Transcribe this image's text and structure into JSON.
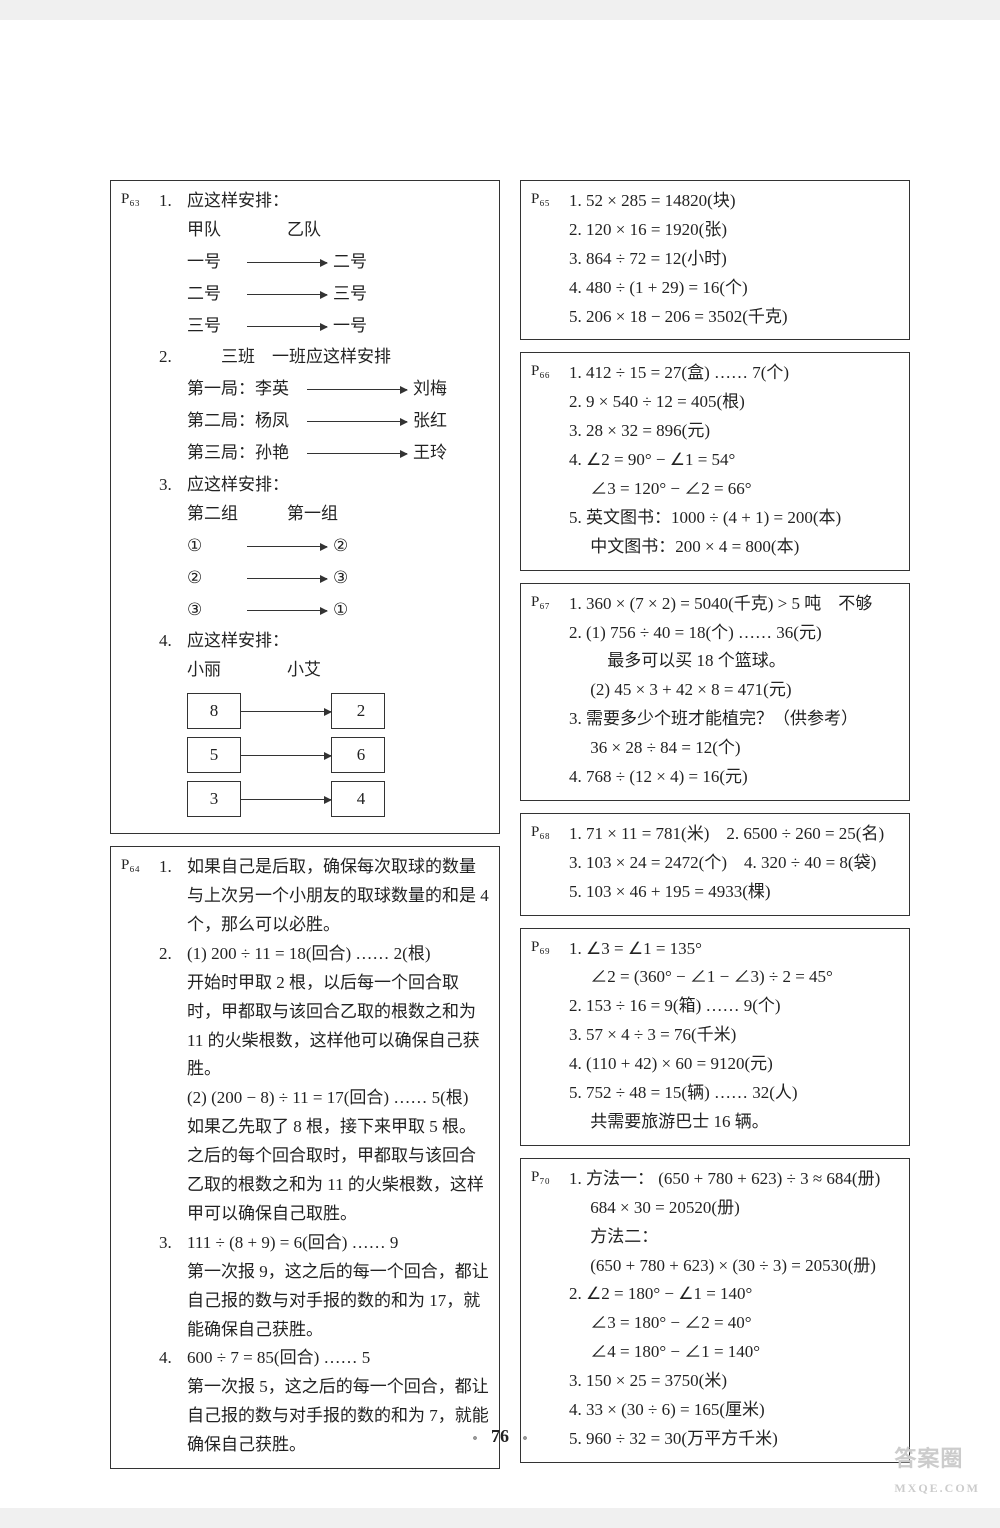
{
  "page_number": "76",
  "watermark": {
    "main": "答案圈",
    "sub": "MXQE.COM"
  },
  "left": {
    "p63": {
      "label": "P₆₃",
      "items": [
        {
          "n": "1.",
          "title": "应这样安排：",
          "header": [
            "甲队",
            "乙队"
          ],
          "arrows": [
            [
              "一号",
              "二号"
            ],
            [
              "二号",
              "三号"
            ],
            [
              "三号",
              "一号"
            ]
          ]
        },
        {
          "n": "2.",
          "title": "三班　一班应这样安排",
          "arrows_wide": [
            [
              "第一局：李英",
              "刘梅"
            ],
            [
              "第二局：杨凤",
              "张红"
            ],
            [
              "第三局：孙艳",
              "王玲"
            ]
          ]
        },
        {
          "n": "3.",
          "title": "应这样安排：",
          "header": [
            "第二组",
            "第一组"
          ],
          "arrows": [
            [
              "①",
              "②"
            ],
            [
              "②",
              "③"
            ],
            [
              "③",
              "①"
            ]
          ]
        },
        {
          "n": "4.",
          "title": "应这样安排：",
          "header": [
            "小丽",
            "小艾"
          ],
          "boxed": [
            [
              "8",
              "2"
            ],
            [
              "5",
              "6"
            ],
            [
              "3",
              "4"
            ]
          ]
        }
      ]
    },
    "p64": {
      "label": "P₆₄",
      "lines": [
        {
          "n": "1.",
          "t": "如果自己是后取，确保每次取球的数量与上次另一个小朋友的取球数量的和是 4 个，那么可以必胜。"
        },
        {
          "n": "2.",
          "t": "(1) 200 ÷ 11 = 18(回合) …… 2(根)"
        },
        {
          "n": "",
          "t": "开始时甲取 2 根，以后每一个回合取时，甲都取与该回合乙取的根数之和为 11 的火柴根数，这样他可以确保自己获胜。"
        },
        {
          "n": "",
          "t": "(2) (200 − 8) ÷ 11 = 17(回合) …… 5(根)"
        },
        {
          "n": "",
          "t": "如果乙先取了 8 根，接下来甲取 5 根。之后的每个回合取时，甲都取与该回合乙取的根数之和为 11 的火柴根数，这样甲可以确保自己取胜。"
        },
        {
          "n": "3.",
          "t": "111 ÷ (8 + 9) = 6(回合) …… 9"
        },
        {
          "n": "",
          "t": "第一次报 9，这之后的每一个回合，都让自己报的数与对手报的数的和为 17，就能确保自己获胜。"
        },
        {
          "n": "4.",
          "t": "600 ÷ 7 = 85(回合) …… 5"
        },
        {
          "n": "",
          "t": "第一次报 5，这之后的每一个回合，都让自己报的数与对手报的数的和为 7，就能确保自己获胜。"
        }
      ]
    }
  },
  "right": {
    "p65": {
      "label": "P₆₅",
      "lines": [
        "1. 52 × 285 = 14820(块)",
        "2. 120 × 16 = 1920(张)",
        "3. 864 ÷ 72 = 12(小时)",
        "4. 480 ÷ (1 + 29) = 16(个)",
        "5. 206 × 18 − 206 = 3502(千克)"
      ]
    },
    "p66": {
      "label": "P₆₆",
      "lines": [
        "1. 412 ÷ 15 = 27(盒) …… 7(个)",
        "2. 9 × 540 ÷ 12 = 405(根)",
        "3. 28 × 32 = 896(元)",
        "4. ∠2 = 90° − ∠1 = 54°",
        "　 ∠3 = 120° − ∠2 = 66°",
        "5. 英文图书：1000 ÷ (4 + 1) = 200(本)",
        "　 中文图书：200 × 4 = 800(本)"
      ]
    },
    "p67": {
      "label": "P₆₇",
      "lines": [
        "1. 360 × (7 × 2) = 5040(千克) > 5 吨　不够",
        "2. (1) 756 ÷ 40 = 18(个) …… 36(元)",
        "　　 最多可以买 18 个篮球。",
        "　 (2) 45 × 3 + 42 × 8 = 471(元)",
        "3. 需要多少个班才能植完？（供参考）",
        "　 36 × 28 ÷ 84 = 12(个)",
        "4. 768 ÷ (12 × 4) = 16(元)"
      ]
    },
    "p68": {
      "label": "P₆₈",
      "lines": [
        "1. 71 × 11 = 781(米)　2. 6500 ÷ 260 = 25(名)",
        "3. 103 × 24 = 2472(个)　4. 320 ÷ 40 = 8(袋)",
        "5. 103 × 46 + 195 = 4933(棵)"
      ]
    },
    "p69": {
      "label": "P₆₉",
      "lines": [
        "1. ∠3 = ∠1 = 135°",
        "　 ∠2 = (360° − ∠1 − ∠3) ÷ 2 = 45°",
        "2. 153 ÷ 16 = 9(箱) …… 9(个)",
        "3. 57 × 4 ÷ 3 = 76(千米)",
        "4. (110 + 42) × 60 = 9120(元)",
        "5. 752 ÷ 48 = 15(辆) …… 32(人)",
        "　 共需要旅游巴士 16 辆。"
      ]
    },
    "p70": {
      "label": "P₇₀",
      "lines": [
        "1. 方法一：  (650 + 780 + 623) ÷ 3 ≈ 684(册)",
        "　 684 × 30 = 20520(册)",
        "　 方法二：",
        "　 (650 + 780 + 623) × (30 ÷ 3) = 20530(册)",
        "2. ∠2 = 180° − ∠1 = 140°",
        "　 ∠3 = 180° − ∠2 = 40°",
        "　 ∠4 = 180° − ∠1 = 140°",
        "3. 150 × 25 = 3750(米)",
        "4. 33 × (30 ÷ 6) = 165(厘米)",
        "5. 960 ÷ 32 = 30(万平方千米)"
      ]
    }
  }
}
